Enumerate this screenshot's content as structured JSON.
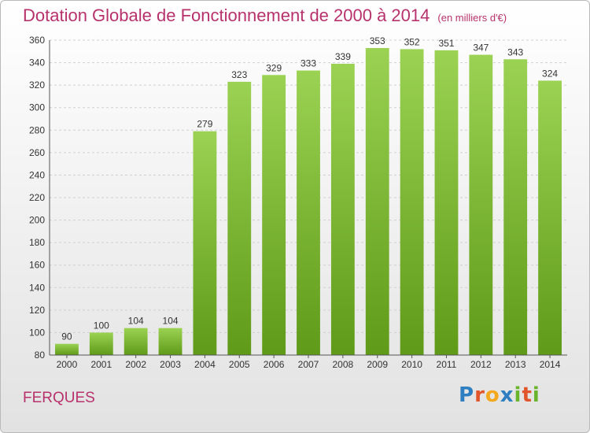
{
  "header": {
    "title": "Dotation Globale de Fonctionnement de 2000 à 2014",
    "unit": "(en milliers d'€)"
  },
  "footer": {
    "commune": "FERQUES",
    "logo_letters": [
      {
        "char": "P",
        "color": "#2e7fc1"
      },
      {
        "char": "r",
        "color": "#e1552b"
      },
      {
        "char": "o",
        "color": "#f3a81d"
      },
      {
        "char": "x",
        "color": "#2e7fc1"
      },
      {
        "char": "i",
        "color": "#6ab42c"
      },
      {
        "char": "t",
        "color": "#e1552b"
      },
      {
        "char": "i",
        "color": "#6ab42c"
      }
    ]
  },
  "colors": {
    "bar_top": "#9bd253",
    "bar_bottom": "#5f9a18",
    "title": "#b7326c",
    "grid": "#d0d0d0"
  },
  "chart_data": {
    "type": "bar",
    "title": "Dotation Globale de Fonctionnement de 2000 à 2014",
    "subtitle": "(en milliers d'€)",
    "categories": [
      "2000",
      "2001",
      "2002",
      "2003",
      "2004",
      "2005",
      "2006",
      "2007",
      "2008",
      "2009",
      "2010",
      "2011",
      "2012",
      "2013",
      "2014"
    ],
    "values": [
      90,
      100,
      104,
      104,
      279,
      323,
      329,
      333,
      339,
      353,
      352,
      351,
      347,
      343,
      324
    ],
    "ylim": [
      80,
      360
    ],
    "yticks": [
      80,
      100,
      120,
      140,
      160,
      180,
      200,
      220,
      240,
      260,
      280,
      300,
      320,
      340,
      360
    ],
    "grid": true,
    "data_labels": true
  }
}
